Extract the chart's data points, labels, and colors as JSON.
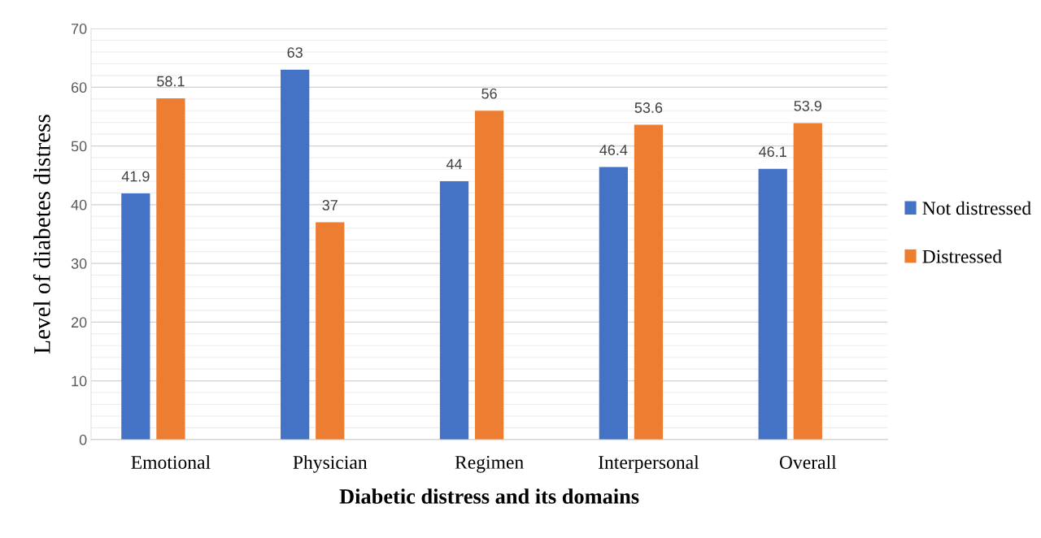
{
  "chart_data": {
    "type": "bar",
    "xlabel": "Diabetic distress and its domains",
    "ylabel": "Level of diabetes distress",
    "categories": [
      "Emotional",
      "Physician",
      "Regimen",
      "Interpersonal",
      "Overall"
    ],
    "series": [
      {
        "name": "Not distressed",
        "color": "#4472c4",
        "values": [
          41.9,
          63,
          44,
          46.4,
          46.1
        ]
      },
      {
        "name": "Distressed",
        "color": "#ed7d31",
        "values": [
          58.1,
          37,
          56,
          53.6,
          53.9
        ]
      }
    ],
    "ylim": [
      0,
      70
    ],
    "yticks": [
      0,
      10,
      20,
      30,
      40,
      50,
      60,
      70
    ],
    "grid": "y",
    "legend": "right",
    "data_labels": true
  }
}
